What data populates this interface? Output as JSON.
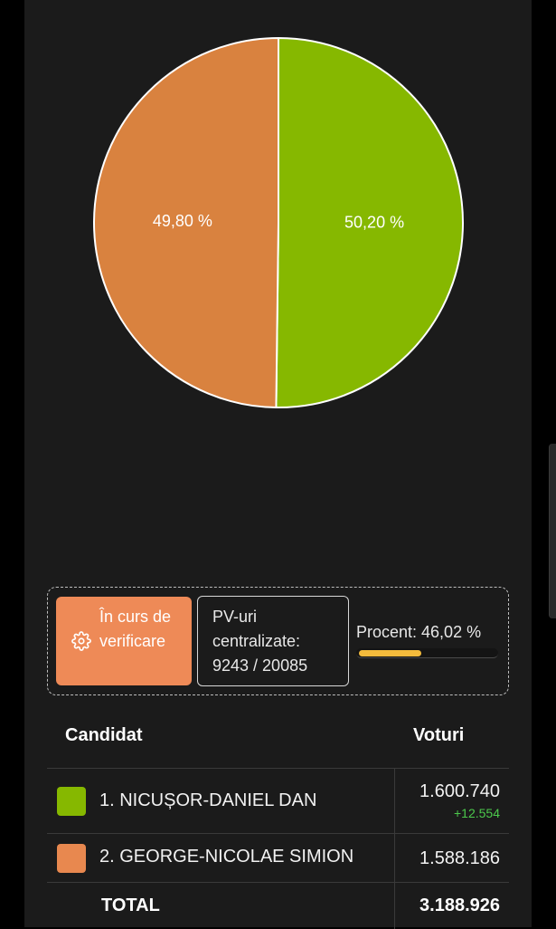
{
  "chart_data": {
    "type": "pie",
    "slices": [
      {
        "label": "1. NICUȘOR-DANIEL DAN",
        "value": 50.2,
        "display": "50,20 %",
        "color": "#86b800"
      },
      {
        "label": "2. GEORGE-NICOLAE SIMION",
        "value": 49.8,
        "display": "49,80 %",
        "color": "#d9823f"
      }
    ]
  },
  "status": {
    "chip_label": "În curs de verificare",
    "chip_icon": "gear-icon",
    "chip_color": "#ee8a57",
    "pv_label": "PV-uri centralizate: 9243 / 20085",
    "percent_label": "Procent: 46,02 %",
    "percent_value": 46.02,
    "progress_color": "#f4bb3c"
  },
  "results": {
    "header_candidate": "Candidat",
    "header_votes": "Voturi",
    "rows": [
      {
        "name": "1. NICUȘOR-DANIEL DAN",
        "votes": "1.600.740",
        "delta": "+12.554",
        "color": "#86b800"
      },
      {
        "name": "2. GEORGE-NICOLAE SIMION",
        "votes": "1.588.186",
        "color": "#e8884f"
      }
    ],
    "total_label": "TOTAL",
    "total_votes": "3.188.926"
  }
}
